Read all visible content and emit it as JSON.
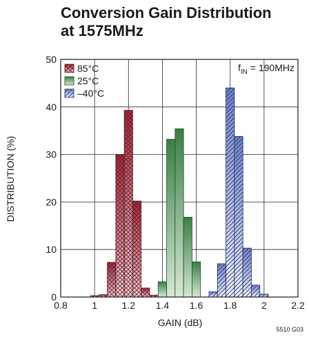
{
  "chart_data": {
    "type": "bar",
    "title_line1": "Conversion Gain Distribution",
    "title_line2": "at 1575MHz",
    "xlabel": "GAIN (dB)",
    "ylabel": "DISTRIBUTION (%)",
    "xlim": [
      0.8,
      2.2
    ],
    "ylim": [
      0,
      50
    ],
    "xticks": [
      "0.8",
      "1",
      "1.2",
      "1.4",
      "1.6",
      "1.8",
      "2",
      "2.2"
    ],
    "yticks": [
      "0",
      "10",
      "20",
      "30",
      "40",
      "50"
    ],
    "bin_width": 0.05,
    "annotation": {
      "prefix": "f",
      "subscript": "IN",
      "suffix": " = 190MHz"
    },
    "figure_code": "5510 G03",
    "series": [
      {
        "name": "85°C",
        "color": "#c0475a",
        "pattern": "crosshatch",
        "x": [
          1.0,
          1.05,
          1.1,
          1.15,
          1.2,
          1.25,
          1.3,
          1.35
        ],
        "values": [
          0.3,
          0.5,
          7.3,
          30,
          39.3,
          20.2,
          1.9,
          0.4
        ]
      },
      {
        "name": "25°C",
        "color": "#4a8a50",
        "pattern": "solid-gradient",
        "x": [
          1.4,
          1.45,
          1.5,
          1.55,
          1.6
        ],
        "values": [
          3.2,
          33.2,
          35.4,
          16.8,
          7.4
        ]
      },
      {
        "name": "–40°C",
        "color": "#6a7fc4",
        "pattern": "diagonal",
        "x": [
          1.7,
          1.75,
          1.8,
          1.85,
          1.9,
          1.95,
          2.0
        ],
        "values": [
          1.1,
          7.0,
          44.0,
          33.8,
          10.3,
          2.5,
          0.6
        ]
      }
    ],
    "grid": true,
    "legend_position": "top-left"
  }
}
